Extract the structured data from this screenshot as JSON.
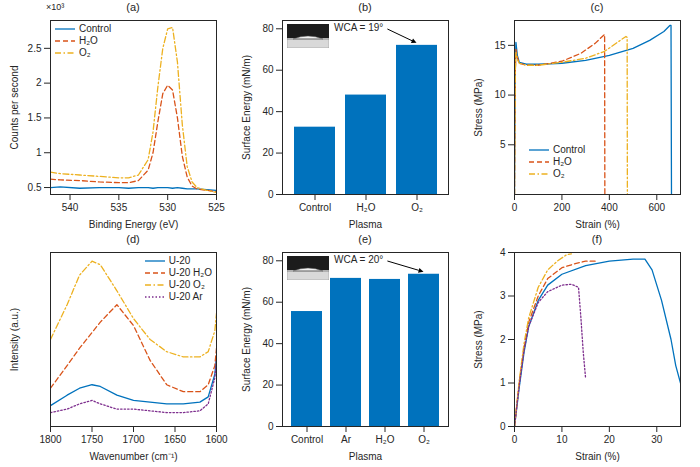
{
  "chart_data": [
    {
      "title": "(a)",
      "type": "line",
      "xlabel": "Binding Energy (eV)",
      "ylabel": "Counts per second",
      "annotations": [
        "×10³"
      ],
      "x": [
        542,
        541,
        539,
        537,
        535,
        534,
        533,
        532,
        531.5,
        531,
        530.5,
        530,
        529.5,
        529,
        528.5,
        528,
        527.5,
        527,
        526,
        525
      ],
      "xlim": [
        542,
        525
      ],
      "xticks": [
        540,
        535,
        530,
        525
      ],
      "ylim": [
        0.4,
        2.9
      ],
      "yticks": [
        0.5,
        1,
        1.5,
        2,
        2.5
      ],
      "grid": false,
      "legend": "top-left",
      "series": [
        {
          "name": "Control",
          "color": "#0072BD",
          "line_style": "solid",
          "values": [
            0.5,
            0.51,
            0.49,
            0.5,
            0.5,
            0.49,
            0.5,
            0.5,
            0.49,
            0.5,
            0.5,
            0.5,
            0.49,
            0.5,
            0.49,
            0.48,
            0.48,
            0.48,
            0.47,
            0.46
          ]
        },
        {
          "name": "H₂O",
          "color": "#D95319",
          "line_style": "dashed",
          "values": [
            0.62,
            0.61,
            0.6,
            0.58,
            0.57,
            0.57,
            0.6,
            0.75,
            1.0,
            1.45,
            1.85,
            1.97,
            1.9,
            1.5,
            0.95,
            0.65,
            0.52,
            0.48,
            0.46,
            0.44
          ]
        },
        {
          "name": "O₂",
          "color": "#EDB120",
          "line_style": "dashdot",
          "values": [
            0.72,
            0.7,
            0.68,
            0.66,
            0.64,
            0.64,
            0.68,
            0.9,
            1.3,
            1.95,
            2.5,
            2.78,
            2.8,
            2.3,
            1.4,
            0.8,
            0.58,
            0.5,
            0.46,
            0.43
          ]
        }
      ]
    },
    {
      "title": "(b)",
      "type": "bar",
      "xlabel": "Plasma",
      "ylabel": "Surface Energy (mN/m)",
      "categories": [
        "Control",
        "H₂O",
        "O₂"
      ],
      "values": [
        32.5,
        48,
        72
      ],
      "color": "#0072BD",
      "ylim": [
        0,
        84
      ],
      "yticks": [
        0,
        20,
        40,
        60,
        80
      ],
      "grid": false,
      "annotations": [
        {
          "text": "WCA = 19°",
          "target": "O₂"
        }
      ]
    },
    {
      "title": "(c)",
      "type": "line",
      "xlabel": "Strain (%)",
      "ylabel": "Stress (MPa)",
      "xlim": [
        0,
        700
      ],
      "xticks": [
        0,
        200,
        400,
        600
      ],
      "ylim": [
        0,
        17.5
      ],
      "yticks": [
        5,
        10,
        15
      ],
      "grid": false,
      "legend": "bottom-left",
      "series": [
        {
          "name": "Control",
          "color": "#0072BD",
          "line_style": "solid",
          "x": [
            0,
            3,
            6,
            12,
            20,
            50,
            100,
            200,
            300,
            400,
            500,
            570,
            630,
            655,
            660,
            662
          ],
          "values": [
            0,
            12,
            15.3,
            14,
            13.3,
            13.1,
            13.1,
            13.2,
            13.5,
            14.0,
            14.7,
            15.5,
            16.4,
            17.0,
            17.0,
            0
          ]
        },
        {
          "name": "H₂O",
          "color": "#D95319",
          "line_style": "dashed",
          "x": [
            0,
            3,
            6,
            12,
            20,
            50,
            100,
            200,
            280,
            340,
            375,
            380,
            381
          ],
          "values": [
            0,
            12,
            14.6,
            13.8,
            13.2,
            13.0,
            13.0,
            13.4,
            14.2,
            15.2,
            16.0,
            16.1,
            0
          ]
        },
        {
          "name": "O₂",
          "color": "#EDB120",
          "line_style": "dashdot",
          "x": [
            0,
            3,
            6,
            12,
            20,
            50,
            100,
            200,
            300,
            380,
            440,
            470,
            475,
            476
          ],
          "values": [
            0,
            12,
            14.3,
            13.6,
            13.2,
            13.0,
            13.0,
            13.3,
            13.7,
            14.4,
            15.4,
            15.9,
            15.8,
            0
          ]
        }
      ]
    },
    {
      "title": "(d)",
      "type": "line",
      "xlabel": "Wavenumber (cm⁻¹)",
      "ylabel": "Intensity (a.u.)",
      "x": [
        1800,
        1780,
        1765,
        1750,
        1740,
        1720,
        1700,
        1680,
        1660,
        1640,
        1620,
        1610,
        1602,
        1600
      ],
      "xlim": [
        1800,
        1600
      ],
      "xticks": [
        1800,
        1750,
        1700,
        1650,
        1600
      ],
      "ylim": [
        0,
        1
      ],
      "tick_labels": "x",
      "grid": false,
      "legend": "top-right",
      "series": [
        {
          "name": "U-20",
          "color": "#0072BD",
          "line_style": "solid",
          "values": [
            0.12,
            0.18,
            0.22,
            0.24,
            0.23,
            0.18,
            0.15,
            0.14,
            0.13,
            0.13,
            0.14,
            0.17,
            0.3,
            0.4
          ]
        },
        {
          "name": "U-20 H₂O",
          "color": "#D95319",
          "line_style": "dashed",
          "values": [
            0.22,
            0.35,
            0.45,
            0.54,
            0.6,
            0.7,
            0.58,
            0.38,
            0.24,
            0.2,
            0.2,
            0.24,
            0.35,
            0.45
          ]
        },
        {
          "name": "U-20 O₂",
          "color": "#EDB120",
          "line_style": "dashdot",
          "values": [
            0.5,
            0.7,
            0.87,
            0.95,
            0.93,
            0.78,
            0.62,
            0.5,
            0.43,
            0.4,
            0.4,
            0.43,
            0.55,
            0.65
          ]
        },
        {
          "name": "U-20 Ar",
          "color": "#7E2F8E",
          "line_style": "dotted",
          "values": [
            0.08,
            0.1,
            0.13,
            0.15,
            0.13,
            0.1,
            0.1,
            0.09,
            0.08,
            0.08,
            0.09,
            0.13,
            0.28,
            0.38
          ]
        }
      ]
    },
    {
      "title": "(e)",
      "type": "bar",
      "xlabel": "Plasma",
      "ylabel": "Surface Energy (mN/m)",
      "categories": [
        "Control",
        "Ar",
        "H₂O",
        "O₂"
      ],
      "values": [
        55.5,
        71.5,
        71,
        73.5
      ],
      "color": "#0072BD",
      "ylim": [
        0,
        84
      ],
      "yticks": [
        0,
        20,
        40,
        60,
        80
      ],
      "grid": false,
      "annotations": [
        {
          "text": "WCA = 20°",
          "target": "O₂"
        }
      ]
    },
    {
      "title": "(f)",
      "type": "line",
      "xlabel": "Strain (%)",
      "ylabel": "Stress (MPa)",
      "xlim": [
        0,
        35
      ],
      "xticks": [
        0,
        10,
        20,
        30
      ],
      "ylim": [
        0,
        4
      ],
      "yticks": [
        0,
        1,
        2,
        3,
        4
      ],
      "grid": false,
      "series": [
        {
          "color": "#0072BD",
          "line_style": "solid",
          "x": [
            0,
            1,
            2,
            3,
            5,
            7,
            10,
            15,
            20,
            25,
            27.5,
            29,
            31,
            33,
            34,
            35
          ],
          "values": [
            0,
            0.9,
            1.7,
            2.3,
            2.9,
            3.25,
            3.5,
            3.7,
            3.8,
            3.85,
            3.85,
            3.6,
            2.9,
            2.0,
            1.4,
            1.0
          ]
        },
        {
          "color": "#D95319",
          "line_style": "dashed",
          "x": [
            0,
            1,
            2,
            3,
            5,
            7,
            10,
            13,
            15,
            17
          ],
          "values": [
            0,
            1.0,
            1.8,
            2.4,
            3.0,
            3.4,
            3.65,
            3.75,
            3.8,
            3.8
          ]
        },
        {
          "color": "#EDB120",
          "line_style": "dashdot",
          "x": [
            0,
            1,
            2,
            3,
            5,
            7,
            9,
            11,
            12
          ],
          "values": [
            0,
            1.05,
            1.9,
            2.5,
            3.2,
            3.6,
            3.8,
            3.95,
            3.97
          ]
        },
        {
          "color": "#7E2F8E",
          "line_style": "dotted",
          "x": [
            0,
            1,
            2,
            3,
            5,
            7,
            10,
            12,
            13.5,
            14,
            14.5,
            15
          ],
          "values": [
            0,
            0.95,
            1.75,
            2.3,
            2.85,
            3.1,
            3.25,
            3.27,
            3.2,
            2.5,
            1.7,
            1.1
          ]
        }
      ]
    }
  ]
}
